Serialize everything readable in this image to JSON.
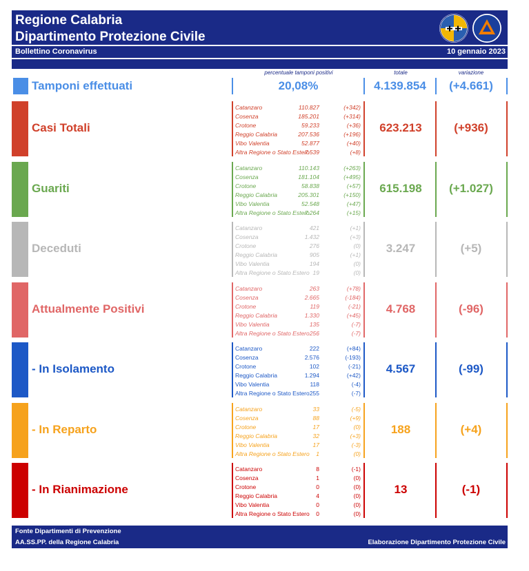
{
  "header": {
    "title_line1": "Regione Calabria",
    "title_line2": "Dipartimento Protezione Civile",
    "subtitle": "Bollettino Coronavirus",
    "date": "10 gennaio 2023"
  },
  "columns": {
    "positivity_caption": "percentuale tamponi positivi",
    "total_caption": "totale",
    "variation_caption": "variazione"
  },
  "tamponi": {
    "label": "Tamponi effettuati",
    "percent": "20,08%",
    "total": "4.139.854",
    "variation": "(+4.661)",
    "color": "#4a8ee6"
  },
  "sections": [
    {
      "label": "Casi Totali",
      "color": "#d0402a",
      "total": "623.213",
      "variation": "(+936)",
      "provinces": [
        {
          "name": "Catanzaro",
          "value": "110.827",
          "delta": "(+342)"
        },
        {
          "name": "Cosenza",
          "value": "185.201",
          "delta": "(+314)"
        },
        {
          "name": "Crotone",
          "value": "59.233",
          "delta": "(+36)"
        },
        {
          "name": "Reggio Calabria",
          "value": "207.536",
          "delta": "(+196)"
        },
        {
          "name": "Vibo Valentia",
          "value": "52.877",
          "delta": "(+40)"
        },
        {
          "name": "Altra Regione o Stato Estero",
          "value": "7.539",
          "delta": "(+8)"
        }
      ]
    },
    {
      "label": "Guariti",
      "color": "#6aa84f",
      "total": "615.198",
      "variation": "(+1.027)",
      "provinces": [
        {
          "name": "Catanzaro",
          "value": "110.143",
          "delta": "(+263)"
        },
        {
          "name": "Cosenza",
          "value": "181.104",
          "delta": "(+495)"
        },
        {
          "name": "Crotone",
          "value": "58.838",
          "delta": "(+57)"
        },
        {
          "name": "Reggio Calabria",
          "value": "205.301",
          "delta": "(+150)"
        },
        {
          "name": "Vibo Valentia",
          "value": "52.548",
          "delta": "(+47)"
        },
        {
          "name": "Altra Regione o Stato Estero",
          "value": "7.264",
          "delta": "(+15)"
        }
      ]
    },
    {
      "label": "Deceduti",
      "color": "#b7b7b7",
      "total": "3.247",
      "variation": "(+5)",
      "provinces": [
        {
          "name": "Catanzaro",
          "value": "421",
          "delta": "(+1)"
        },
        {
          "name": "Cosenza",
          "value": "1.432",
          "delta": "(+3)"
        },
        {
          "name": "Crotone",
          "value": "276",
          "delta": "(0)"
        },
        {
          "name": "Reggio Calabria",
          "value": "905",
          "delta": "(+1)"
        },
        {
          "name": "Vibo Valentia",
          "value": "194",
          "delta": "(0)"
        },
        {
          "name": "Altra Regione o Stato Estero",
          "value": "19",
          "delta": "(0)"
        }
      ]
    },
    {
      "label": "Attualmente Positivi",
      "color": "#e06666",
      "total": "4.768",
      "variation": "(-96)",
      "provinces": [
        {
          "name": "Catanzaro",
          "value": "263",
          "delta": "(+78)"
        },
        {
          "name": "Cosenza",
          "value": "2.665",
          "delta": "(-184)"
        },
        {
          "name": "Crotone",
          "value": "119",
          "delta": "(-21)"
        },
        {
          "name": "Reggio Calabria",
          "value": "1.330",
          "delta": "(+45)"
        },
        {
          "name": "Vibo Valentia",
          "value": "135",
          "delta": "(-7)"
        },
        {
          "name": "Altra Regione o Stato Estero",
          "value": "256",
          "delta": "(-7)"
        }
      ]
    },
    {
      "label": "- In Isolamento",
      "color": "#1c58c6",
      "total": "4.567",
      "variation": "(-99)",
      "provinces": [
        {
          "name": "Catanzaro",
          "value": "222",
          "delta": "(+84)"
        },
        {
          "name": "Cosenza",
          "value": "2.576",
          "delta": "(-193)"
        },
        {
          "name": "Crotone",
          "value": "102",
          "delta": "(-21)"
        },
        {
          "name": "Reggio Calabria",
          "value": "1.294",
          "delta": "(+42)"
        },
        {
          "name": "Vibo Valentia",
          "value": "118",
          "delta": "(-4)"
        },
        {
          "name": "Altra Regione o Stato Estero",
          "value": "255",
          "delta": "(-7)"
        }
      ]
    },
    {
      "label": "- In Reparto",
      "color": "#f6a21c",
      "total": "188",
      "variation": "(+4)",
      "provinces": [
        {
          "name": "Catanzaro",
          "value": "33",
          "delta": "(-5)"
        },
        {
          "name": "Cosenza",
          "value": "88",
          "delta": "(+9)"
        },
        {
          "name": "Crotone",
          "value": "17",
          "delta": "(0)"
        },
        {
          "name": "Reggio Calabria",
          "value": "32",
          "delta": "(+3)"
        },
        {
          "name": "Vibo Valentia",
          "value": "17",
          "delta": "(-3)"
        },
        {
          "name": "Altra Regione o Stato Estero",
          "value": "1",
          "delta": "(0)"
        }
      ]
    },
    {
      "label": "- In Rianimazione",
      "color": "#cc0000",
      "total": "13",
      "variation": "(-1)",
      "provinces": [
        {
          "name": "Catanzaro",
          "value": "8",
          "delta": "(-1)"
        },
        {
          "name": "Cosenza",
          "value": "1",
          "delta": "(0)"
        },
        {
          "name": "Crotone",
          "value": "0",
          "delta": "(0)"
        },
        {
          "name": "Reggio Calabria",
          "value": "4",
          "delta": "(0)"
        },
        {
          "name": "Vibo Valentia",
          "value": "0",
          "delta": "(0)"
        },
        {
          "name": "Altra Regione o Stato Estero",
          "value": "0",
          "delta": "(0)"
        }
      ]
    }
  ],
  "footer": {
    "source_line1": "Fonte Dipartimenti di Prevenzione",
    "source_line2": "AA.SS.PP.  della Regione Calabria",
    "credit": "Elaborazione Dipartimento Protezione Civile"
  },
  "logos": {
    "region": "regione-calabria-logo-icon",
    "civil_protection": "protezione-civile-logo-icon"
  }
}
